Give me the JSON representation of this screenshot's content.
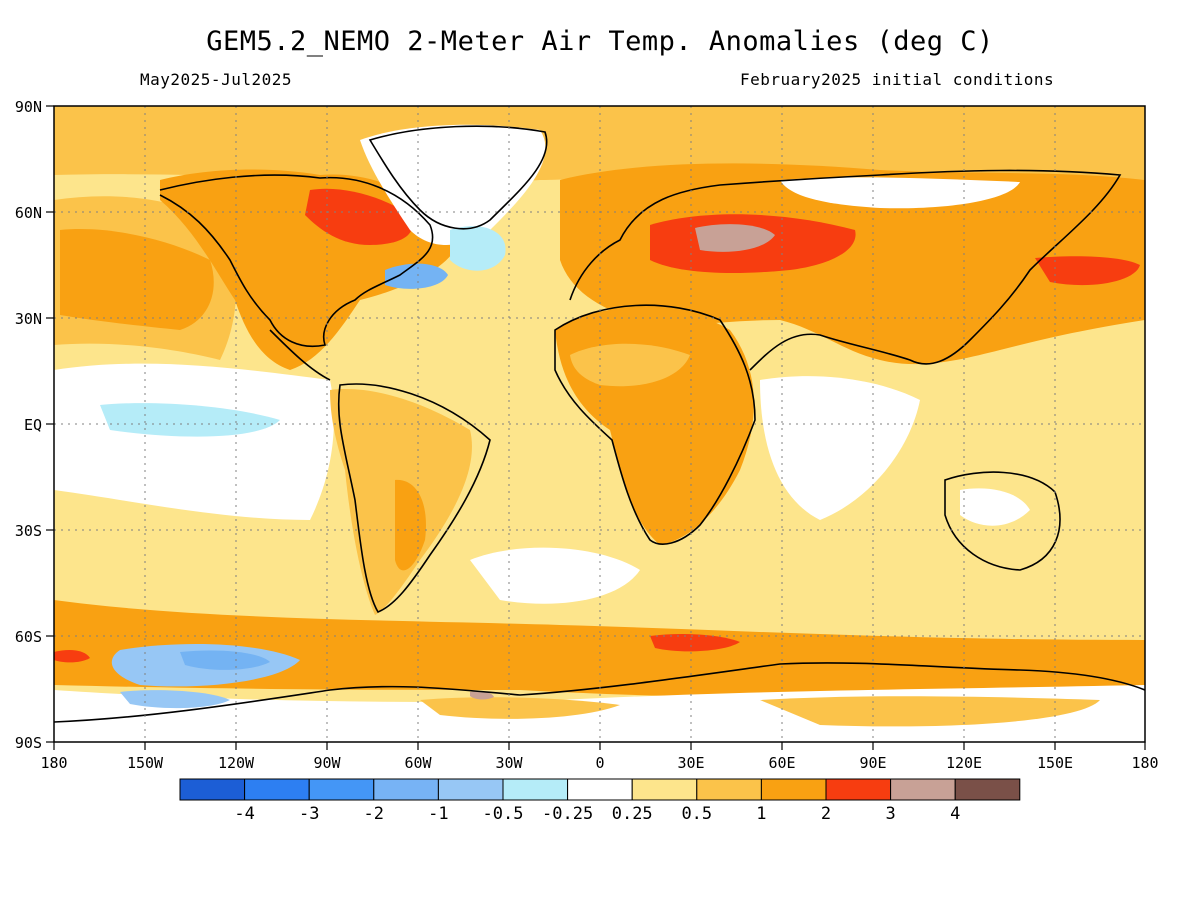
{
  "title": "GEM5.2_NEMO 2-Meter Air Temp. Anomalies (deg C)",
  "subtitle_left": "May2025-Jul2025",
  "subtitle_right": "February2025 initial conditions",
  "colors": {
    "ocean_base": "#fde58c",
    "light_orange": "#fbc34a",
    "orange": "#f9a112",
    "red": "#f73d10",
    "brown_pink": "#c8a196",
    "white": "#ffffff",
    "light_cyan": "#b5ecf8",
    "light_blue": "#97c7f5",
    "blue": "#74b3f3",
    "coast": "#000000"
  },
  "map": {
    "lat_labels": [
      "90N",
      "60N",
      "30N",
      "EQ",
      "30S",
      "60S",
      "90S"
    ],
    "lon_labels": [
      "180",
      "150W",
      "120W",
      "90W",
      "60W",
      "30W",
      "0",
      "30E",
      "60E",
      "90E",
      "120E",
      "150E",
      "180"
    ],
    "regions": [
      {
        "name": "north-america",
        "color": "#f9a112"
      },
      {
        "name": "canada-red-patch",
        "color": "#f73d10"
      },
      {
        "name": "greenland",
        "color": "#ffffff"
      },
      {
        "name": "eurasia",
        "color": "#f9a112"
      },
      {
        "name": "central-asia-hotspot",
        "color": "#f73d10"
      },
      {
        "name": "central-asia-peak",
        "color": "#c8a196"
      },
      {
        "name": "africa",
        "color": "#f9a112"
      },
      {
        "name": "south-america",
        "color": "#fbc34a"
      },
      {
        "name": "australia",
        "color": "#fde58c"
      },
      {
        "name": "antarctica",
        "color": "#ffffff"
      },
      {
        "name": "southern-ocean-band",
        "color": "#f9a112"
      },
      {
        "name": "pacific-cool-patch",
        "color": "#74b3f3"
      },
      {
        "name": "atlantic-cold-blob",
        "color": "#74b3f3"
      },
      {
        "name": "equatorial-pacific-cool",
        "color": "#b5ecf8"
      }
    ]
  },
  "colorbar": {
    "colors": [
      "#1c5ed6",
      "#2d7ff2",
      "#4496f6",
      "#77b3f5",
      "#97c7f5",
      "#b5ecf8",
      "#ffffff",
      "#fde58c",
      "#fbc34a",
      "#f9a112",
      "#f73d10",
      "#c8a196",
      "#7a5048"
    ],
    "labels": [
      "-4",
      "-3",
      "-2",
      "-1",
      "-0.5",
      "-0.25",
      "0.25",
      "0.5",
      "1",
      "2",
      "3",
      "4"
    ]
  }
}
